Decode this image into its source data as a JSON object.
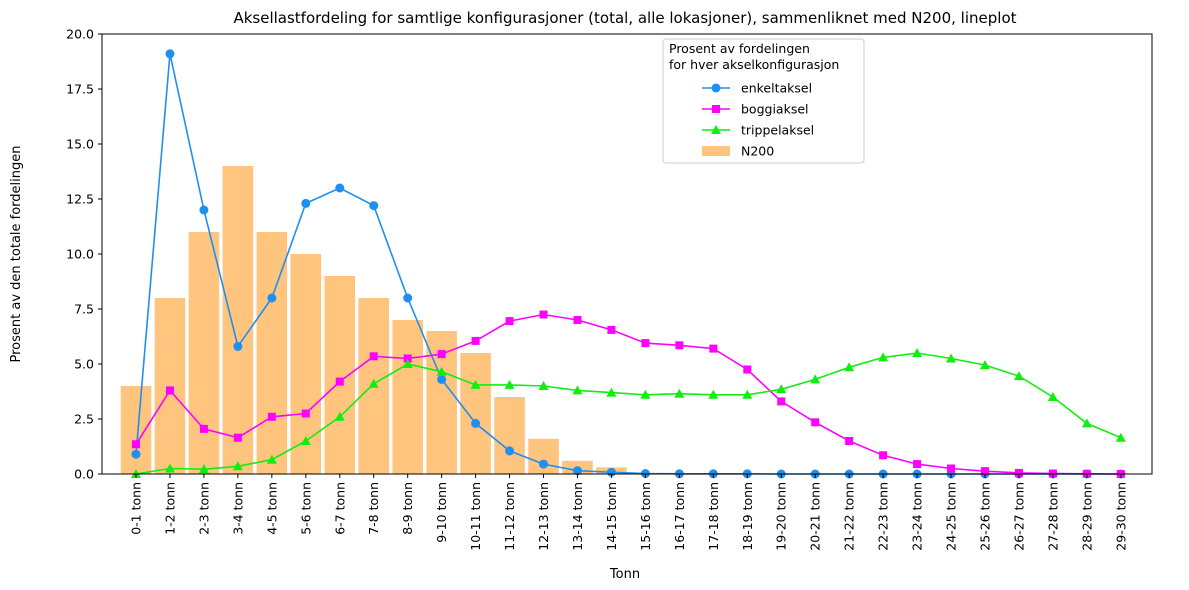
{
  "chart_data": {
    "type": "bar+line",
    "title": "Aksellastfordeling for samtlige konfigurasjoner (total, alle lokasjoner), sammenliknet med N200, lineplot",
    "xlabel": "Tonn",
    "ylabel": "Prosent av den totale fordelingen",
    "ylim": [
      0,
      20
    ],
    "yticks": [
      "0.0",
      "2.5",
      "5.0",
      "7.5",
      "10.0",
      "12.5",
      "15.0",
      "17.5",
      "20.0"
    ],
    "grid": false,
    "legend_title": "Prosent av fordelingen\nfor hver akselkonfigurasjon",
    "legend_placement": "top-center",
    "categories": [
      "0-1 tonn",
      "1-2 tonn",
      "2-3 tonn",
      "3-4 tonn",
      "4-5 tonn",
      "5-6 tonn",
      "6-7 tonn",
      "7-8 tonn",
      "8-9 tonn",
      "9-10 tonn",
      "10-11 tonn",
      "11-12 tonn",
      "12-13 tonn",
      "13-14 tonn",
      "14-15 tonn",
      "15-16 tonn",
      "16-17 tonn",
      "17-18 tonn",
      "18-19 tonn",
      "19-20 tonn",
      "20-21 tonn",
      "21-22 tonn",
      "22-23 tonn",
      "23-24 tonn",
      "24-25 tonn",
      "25-26 tonn",
      "26-27 tonn",
      "27-28 tonn",
      "28-29 tonn",
      "29-30 tonn"
    ],
    "bars": {
      "name": "N200",
      "color": "#ffc47e",
      "values": [
        4.0,
        8.0,
        11.0,
        14.0,
        11.0,
        10.0,
        9.0,
        8.0,
        7.0,
        6.5,
        5.5,
        3.5,
        1.6,
        0.6,
        0.3,
        0,
        0,
        0,
        0,
        0,
        0,
        0,
        0,
        0,
        0,
        0,
        0,
        0,
        0,
        0
      ]
    },
    "series": [
      {
        "name": "enkeltaksel",
        "color": "#1f8ff0",
        "marker": "circle",
        "values": [
          0.9,
          19.1,
          12.0,
          5.8,
          8.0,
          12.3,
          13.0,
          12.2,
          8.0,
          4.3,
          2.3,
          1.05,
          0.45,
          0.15,
          0.08,
          0.02,
          0.01,
          0.01,
          0.01,
          0.0,
          0.0,
          0.0,
          0.0,
          0.0,
          0.0,
          0.0,
          0.0,
          0.0,
          0.0,
          0.0
        ]
      },
      {
        "name": "boggiaksel",
        "color": "#ff00ff",
        "marker": "square",
        "values": [
          1.35,
          3.8,
          2.05,
          1.65,
          2.6,
          2.75,
          4.2,
          5.35,
          5.25,
          5.45,
          6.05,
          6.95,
          7.25,
          7.0,
          6.55,
          5.95,
          5.85,
          5.7,
          4.75,
          3.3,
          2.35,
          1.5,
          0.85,
          0.45,
          0.25,
          0.13,
          0.05,
          0.02,
          0.01,
          0.0
        ]
      },
      {
        "name": "trippelaksel",
        "color": "#10ee10",
        "marker": "triangle",
        "values": [
          0.0,
          0.25,
          0.22,
          0.35,
          0.65,
          1.5,
          2.6,
          4.1,
          5.0,
          4.65,
          4.05,
          4.05,
          4.0,
          3.8,
          3.7,
          3.6,
          3.65,
          3.6,
          3.6,
          3.85,
          4.3,
          4.85,
          5.3,
          5.5,
          5.25,
          4.95,
          4.45,
          3.5,
          2.3,
          1.65
        ]
      }
    ]
  }
}
